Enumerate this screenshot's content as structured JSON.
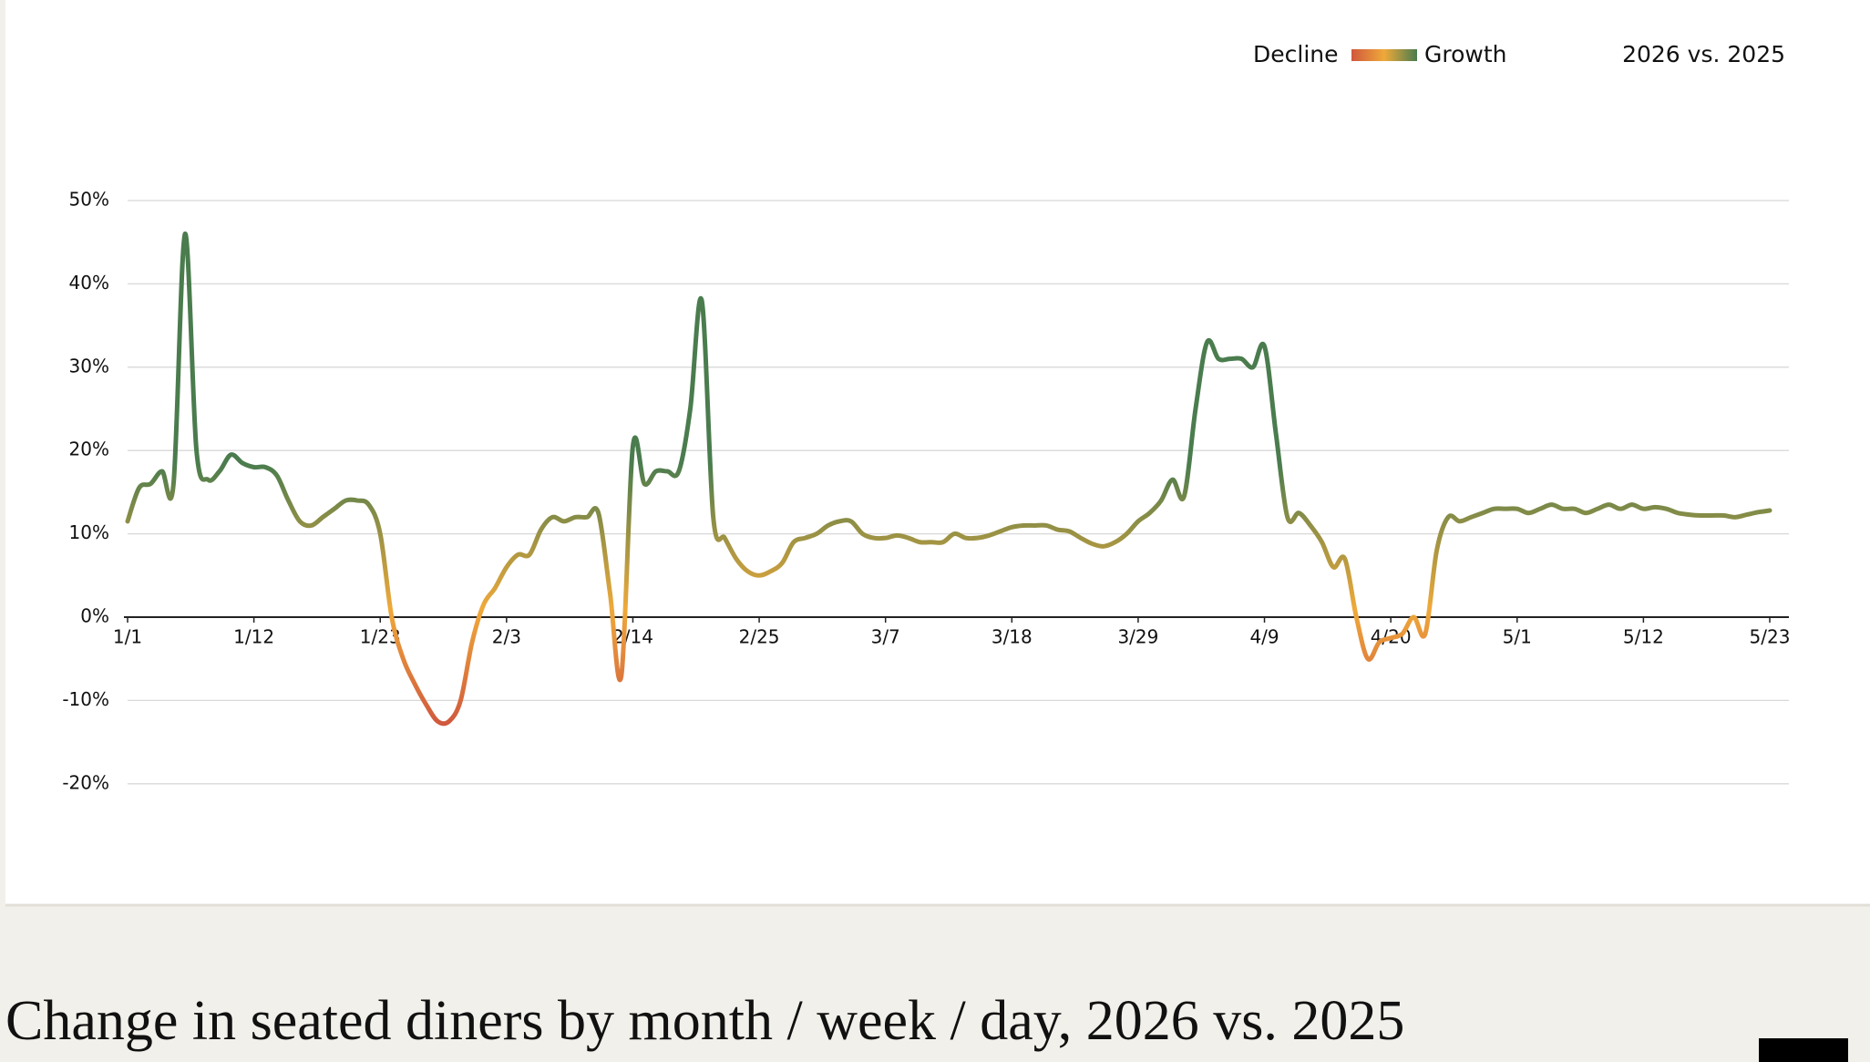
{
  "chart_data": {
    "type": "line",
    "title": "Change in seated diners by month / week / day, 2026 vs. 2025",
    "legend": {
      "decline": "Decline",
      "growth": "Growth",
      "comparison": "2026 vs. 2025"
    },
    "colors": {
      "decline": "#d0573d",
      "neutral": "#efa93a",
      "growth": "#4a7c4e"
    },
    "categories": [
      "1/1",
      null,
      null,
      null,
      null,
      null,
      null,
      null,
      null,
      null,
      null,
      "1/12",
      null,
      null,
      null,
      null,
      null,
      null,
      null,
      null,
      null,
      null,
      "1/23",
      null,
      null,
      null,
      null,
      null,
      null,
      null,
      null,
      null,
      null,
      "2/3",
      null,
      null,
      null,
      null,
      null,
      null,
      null,
      null,
      null,
      null,
      "2/14",
      null,
      null,
      null,
      null,
      null,
      null,
      null,
      null,
      null,
      null,
      "2/25",
      null,
      null,
      null,
      null,
      null,
      null,
      null,
      null,
      null,
      null,
      "3/7",
      null,
      null,
      null,
      null,
      null,
      null,
      null,
      null,
      null,
      null,
      "3/18",
      null,
      null,
      null,
      null,
      null,
      null,
      null,
      null,
      null,
      null,
      "3/29",
      null,
      null,
      null,
      null,
      null,
      null,
      null,
      null,
      null,
      null,
      "4/9",
      null,
      null,
      null,
      null,
      null,
      null,
      null,
      null,
      null,
      null,
      "4/20",
      null,
      null,
      null,
      null,
      null,
      null,
      null,
      null,
      null,
      null,
      "5/1",
      null,
      null,
      null,
      null,
      null,
      null,
      null,
      null,
      null,
      null,
      "5/12",
      null,
      null,
      null,
      null,
      null,
      null,
      null,
      null,
      null,
      null,
      "5/23"
    ],
    "values": [
      11.5,
      15.5,
      16,
      17.5,
      16,
      46,
      20,
      16.5,
      17.5,
      19.5,
      18.5,
      18,
      18,
      17,
      14,
      11.5,
      11,
      12,
      13,
      14,
      14,
      13.5,
      10,
      0,
      -5,
      -8,
      -10.5,
      -12.5,
      -12.5,
      -10,
      -3,
      1.5,
      3.5,
      6,
      7.5,
      7.5,
      10.5,
      12,
      11.5,
      12,
      12,
      12.5,
      3,
      -7,
      20.5,
      16,
      17.5,
      17.5,
      17.5,
      25,
      38,
      12,
      9.5,
      7,
      5.5,
      5,
      5.5,
      6.5,
      9,
      9.5,
      10,
      11,
      11.5,
      11.5,
      10,
      9.5,
      9.5,
      9.8,
      9.5,
      9,
      9,
      9,
      10,
      9.5,
      9.5,
      9.8,
      10.3,
      10.8,
      11,
      11,
      11,
      10.5,
      10.3,
      9.5,
      8.8,
      8.5,
      9,
      10,
      11.5,
      12.5,
      14,
      16.5,
      14.5,
      25,
      33,
      31,
      31,
      31,
      30,
      32.5,
      22,
      12,
      12.5,
      11,
      9,
      6,
      7,
      0,
      -5,
      -3,
      -2.5,
      -2,
      0,
      -2,
      8,
      12,
      11.5,
      12,
      12.5,
      13,
      13,
      13,
      12.5,
      13,
      13.5,
      13,
      13,
      12.5,
      13,
      13.5,
      13,
      13.5,
      13,
      13.2,
      13,
      12.5,
      12.3,
      12.2,
      12.2,
      12.2,
      12,
      12.3,
      12.6,
      12.8
    ],
    "ylim": [
      -20,
      50
    ],
    "yticks": [
      {
        "value": 50,
        "label": "50%"
      },
      {
        "value": 40,
        "label": "40%"
      },
      {
        "value": 30,
        "label": "30%"
      },
      {
        "value": 20,
        "label": "20%"
      },
      {
        "value": 10,
        "label": "10%"
      },
      {
        "value": 0,
        "label": "0%"
      },
      {
        "value": -10,
        "label": "-10%"
      },
      {
        "value": -20,
        "label": "-20%"
      }
    ],
    "grid": true
  }
}
